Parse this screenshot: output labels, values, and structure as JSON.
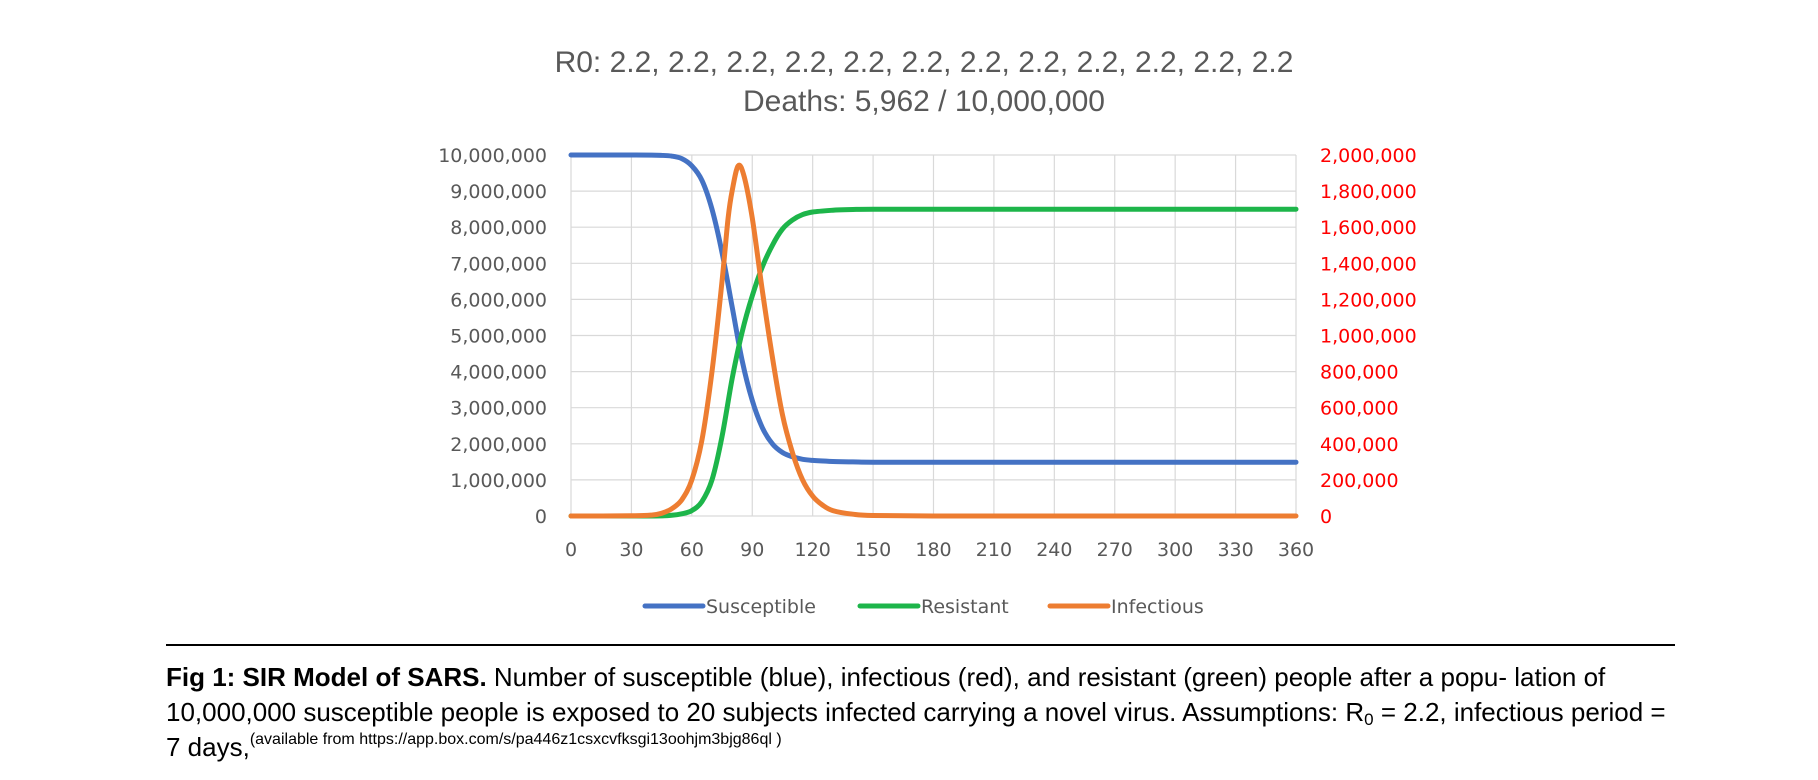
{
  "chart_data": {
    "type": "line",
    "title_line1": "R0: 2.2, 2.2, 2.2, 2.2, 2.2, 2.2, 2.2, 2.2, 2.2, 2.2, 2.2, 2.2",
    "title_line2": "Deaths: 5,962 / 10,000,000",
    "x_ticks": [
      "0",
      "30",
      "60",
      "90",
      "120",
      "150",
      "180",
      "210",
      "240",
      "270",
      "300",
      "330",
      "360"
    ],
    "y_left_ticks": [
      "0",
      "1,000,000",
      "2,000,000",
      "3,000,000",
      "4,000,000",
      "5,000,000",
      "6,000,000",
      "7,000,000",
      "8,000,000",
      "9,000,000",
      "10,000,000"
    ],
    "y_right_ticks": [
      "0",
      "200,000",
      "400,000",
      "600,000",
      "800,000",
      "1,000,000",
      "1,200,000",
      "1,400,000",
      "1,600,000",
      "1,800,000",
      "2,000,000"
    ],
    "xlim": [
      0,
      360
    ],
    "ylim_left": [
      0,
      10000000
    ],
    "ylim_right": [
      0,
      2000000
    ],
    "grid": true,
    "legend_position": "bottom",
    "right_axis_color": "#ff0000",
    "series": [
      {
        "name": "Susceptible",
        "axis": "left",
        "color": "#4472c4",
        "x": [
          0,
          30,
          40,
          45,
          50,
          55,
          60,
          65,
          70,
          75,
          80,
          85,
          90,
          95,
          100,
          105,
          110,
          115,
          120,
          130,
          140,
          150,
          180,
          240,
          300,
          360
        ],
        "y": [
          10000000,
          9999800,
          9998000,
          9990000,
          9970000,
          9900000,
          9700000,
          9300000,
          8500000,
          7300000,
          5800000,
          4300000,
          3200000,
          2450000,
          2000000,
          1760000,
          1640000,
          1570000,
          1540000,
          1510000,
          1500000,
          1490000,
          1490000,
          1490000,
          1490000,
          1490000
        ]
      },
      {
        "name": "Resistant",
        "axis": "left",
        "color": "#1db54a",
        "x": [
          0,
          40,
          50,
          55,
          60,
          65,
          70,
          75,
          80,
          85,
          90,
          95,
          100,
          105,
          110,
          115,
          120,
          130,
          140,
          150,
          180,
          240,
          300,
          360
        ],
        "y": [
          0,
          0,
          20000,
          60000,
          150000,
          400000,
          1000000,
          2200000,
          3800000,
          5100000,
          6100000,
          6900000,
          7500000,
          7950000,
          8200000,
          8350000,
          8420000,
          8470000,
          8490000,
          8500000,
          8500000,
          8500000,
          8500000,
          8500000
        ]
      },
      {
        "name": "Infectious",
        "axis": "right",
        "color": "#ed7d31",
        "x": [
          0,
          30,
          40,
          45,
          50,
          55,
          60,
          65,
          70,
          75,
          78,
          80,
          83,
          86,
          90,
          95,
          100,
          105,
          110,
          115,
          120,
          125,
          130,
          140,
          150,
          180,
          240,
          300,
          360
        ],
        "y": [
          0,
          1000,
          5000,
          15000,
          40000,
          90000,
          200000,
          420000,
          800000,
          1300000,
          1650000,
          1800000,
          1940000,
          1880000,
          1650000,
          1250000,
          880000,
          560000,
          350000,
          200000,
          110000,
          60000,
          30000,
          10000,
          3000,
          0,
          0,
          0,
          0
        ]
      }
    ]
  },
  "caption": {
    "lead": "Fig 1: SIR Model of SARS.",
    "text_before_sub": " Number of susceptible (blue), infectious (red), and resistant (green) people after a popu- lation of 10,000,000 susceptible people is exposed to 20 subjects infected carrying a novel virus.  Assumptions: R",
    "sub": "0",
    "text_after_sub": " = 2.2, infectious period = 7 days,",
    "sup": "(available from https://app.box.com/s/pa446z1csxcvfksgi13oohjm3bjg86ql )"
  }
}
